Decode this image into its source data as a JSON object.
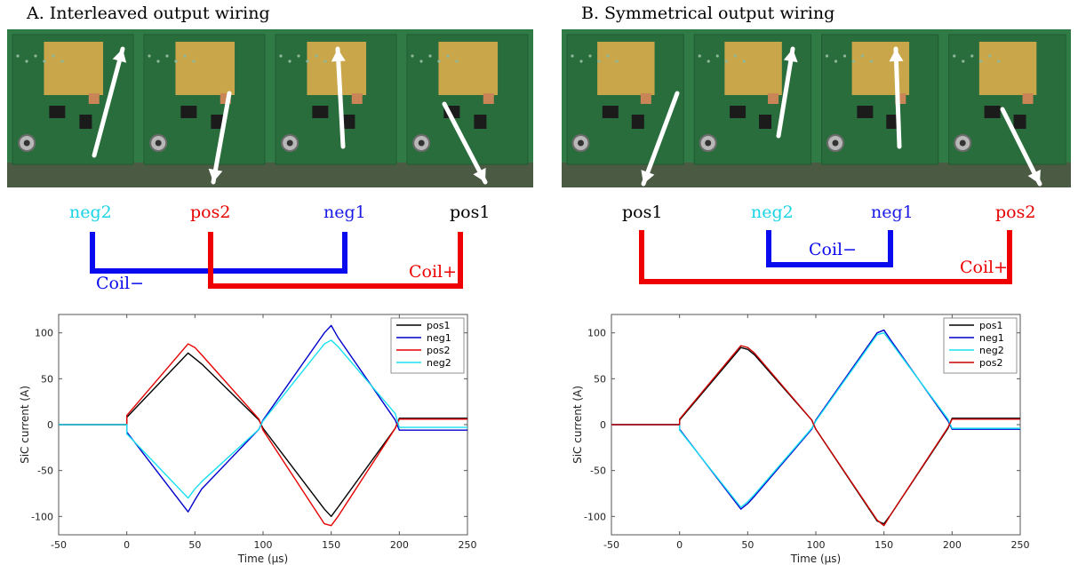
{
  "panels": [
    {
      "title": "A. Interleaved output wiring",
      "terminals": [
        {
          "label": "neg2",
          "color": "#19d3e6"
        },
        {
          "label": "pos2",
          "color": "#e60000"
        },
        {
          "label": "neg1",
          "color": "#1a1ae6"
        },
        {
          "label": "pos1",
          "color": "#000000"
        }
      ],
      "coil_minus": {
        "label": "Coil−",
        "color": "#0a0aee"
      },
      "coil_plus": {
        "label": "Coil+",
        "color": "#ee0000"
      },
      "photo": {
        "board_color": "#2f7a45",
        "pad_color": "#c9a64a",
        "arrow_color": "#ffffff"
      }
    },
    {
      "title": "B. Symmetrical output wiring",
      "terminals": [
        {
          "label": "pos1",
          "color": "#000000"
        },
        {
          "label": "neg2",
          "color": "#19d3e6"
        },
        {
          "label": "neg1",
          "color": "#1a1ae6"
        },
        {
          "label": "pos2",
          "color": "#e60000"
        }
      ],
      "coil_minus": {
        "label": "Coil−",
        "color": "#0a0aee"
      },
      "coil_plus": {
        "label": "Coil+",
        "color": "#ee0000"
      },
      "photo": {
        "board_color": "#2f7a45",
        "pad_color": "#c9a64a",
        "arrow_color": "#ffffff"
      }
    }
  ],
  "chart_data": [
    {
      "type": "line",
      "xlabel": "Time (µs)",
      "ylabel": "SiC current (A)",
      "xlim": [
        -50,
        250
      ],
      "ylim": [
        -120,
        120
      ],
      "xticks": [
        -50,
        0,
        50,
        100,
        150,
        200,
        250
      ],
      "yticks": [
        -100,
        -50,
        0,
        50,
        100
      ],
      "legend": "top-right",
      "grid": false,
      "series": [
        {
          "name": "pos1",
          "color": "#000000",
          "x": [
            -50,
            0,
            0,
            45,
            50,
            55,
            97,
            100,
            145,
            150,
            155,
            197,
            200,
            250
          ],
          "y": [
            0,
            0,
            8,
            78,
            72,
            66,
            5,
            -4,
            -92,
            -100,
            -90,
            -4,
            7,
            7
          ]
        },
        {
          "name": "neg1",
          "color": "#0000cc",
          "x": [
            -50,
            0,
            0,
            45,
            50,
            55,
            97,
            100,
            145,
            150,
            155,
            197,
            200,
            250
          ],
          "y": [
            0,
            0,
            -8,
            -95,
            -82,
            -70,
            -5,
            5,
            100,
            108,
            95,
            5,
            -6,
            -6
          ]
        },
        {
          "name": "pos2",
          "color": "#e60000",
          "x": [
            -50,
            0,
            0,
            45,
            50,
            55,
            97,
            100,
            145,
            150,
            155,
            197,
            200,
            250
          ],
          "y": [
            0,
            0,
            10,
            88,
            84,
            76,
            6,
            -6,
            -108,
            -110,
            -100,
            -4,
            6,
            6
          ]
        },
        {
          "name": "neg2",
          "color": "#19e0f0",
          "x": [
            -50,
            0,
            0,
            45,
            50,
            55,
            97,
            100,
            145,
            150,
            155,
            197,
            200,
            250
          ],
          "y": [
            0,
            0,
            -10,
            -80,
            -70,
            -62,
            -5,
            4,
            88,
            92,
            85,
            12,
            -3,
            -3
          ]
        }
      ]
    },
    {
      "type": "line",
      "xlabel": "Time (µs)",
      "ylabel": "SiC current (A)",
      "xlim": [
        -50,
        250
      ],
      "ylim": [
        -120,
        120
      ],
      "xticks": [
        -50,
        0,
        50,
        100,
        150,
        200,
        250
      ],
      "yticks": [
        -100,
        -50,
        0,
        50,
        100
      ],
      "legend": "top-right",
      "grid": false,
      "series": [
        {
          "name": "pos1",
          "color": "#000000",
          "x": [
            -50,
            0,
            0,
            45,
            50,
            55,
            97,
            100,
            145,
            150,
            155,
            197,
            200,
            250
          ],
          "y": [
            0,
            0,
            5,
            84,
            82,
            76,
            5,
            -5,
            -105,
            -108,
            -98,
            -4,
            7,
            7
          ]
        },
        {
          "name": "neg1",
          "color": "#0000cc",
          "x": [
            -50,
            0,
            0,
            45,
            50,
            55,
            97,
            100,
            145,
            150,
            155,
            197,
            200,
            250
          ],
          "y": [
            0,
            0,
            -5,
            -92,
            -86,
            -78,
            -5,
            5,
            100,
            103,
            92,
            4,
            -5,
            -5
          ]
        },
        {
          "name": "neg2",
          "color": "#19e0f0",
          "x": [
            -50,
            0,
            0,
            45,
            50,
            55,
            97,
            100,
            145,
            150,
            155,
            197,
            200,
            250
          ],
          "y": [
            0,
            0,
            -6,
            -90,
            -84,
            -76,
            -4,
            4,
            98,
            100,
            90,
            6,
            -4,
            -4
          ]
        },
        {
          "name": "pos2",
          "color": "#cc0000",
          "x": [
            -50,
            0,
            0,
            45,
            50,
            55,
            97,
            100,
            145,
            150,
            155,
            197,
            200,
            250
          ],
          "y": [
            0,
            0,
            6,
            86,
            84,
            78,
            5,
            -5,
            -104,
            -110,
            -98,
            -3,
            6,
            6
          ]
        }
      ]
    }
  ]
}
